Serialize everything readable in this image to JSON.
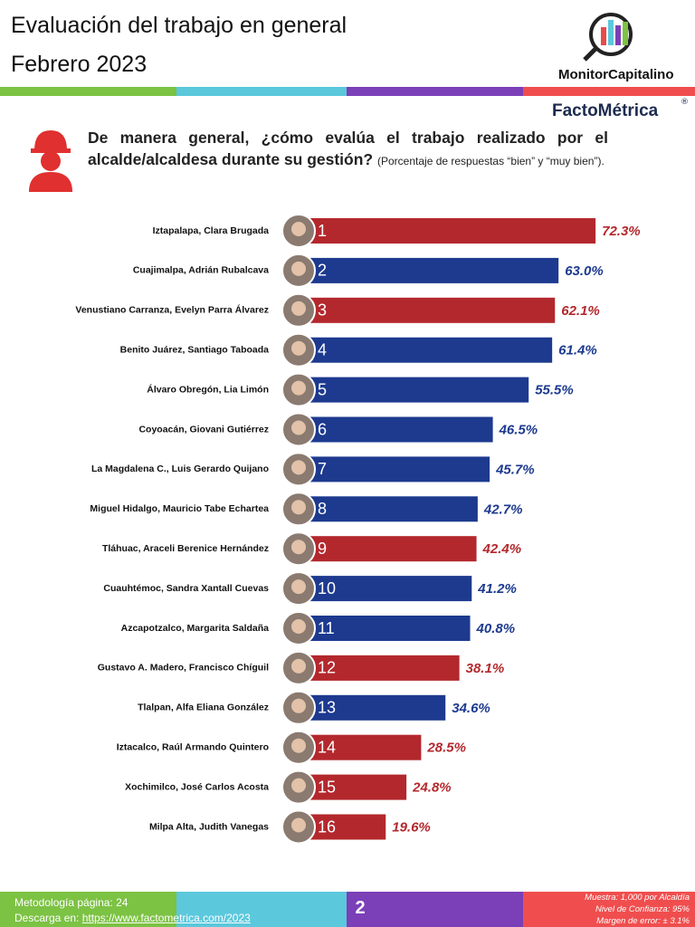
{
  "header": {
    "title_line1": "Evaluación del trabajo en general",
    "title_line2": "Febrero 2023",
    "logo1": "MonitorCapitalino",
    "logo2": "FactoMétrica",
    "logo2_mark": "®"
  },
  "question": {
    "text": "De manera general, ¿cómo evalúa el trabajo realizado por el alcalde/alcaldesa durante su gestión?",
    "note": "(Porcentaje de respuestas “bien” y “muy bien”)."
  },
  "chart_data": {
    "type": "bar",
    "orientation": "horizontal",
    "categories": [
      "Iztapalapa, Clara Brugada",
      "Cuajimalpa, Adrián Rubalcava",
      "Venustiano Carranza, Evelyn Parra Álvarez",
      "Benito Juárez, Santiago Taboada",
      "Álvaro Obregón, Lia Limón",
      "Coyoacán, Giovani Gutiérrez",
      "La Magdalena C., Luis Gerardo Quijano",
      "Miguel Hidalgo, Mauricio Tabe Echartea",
      "Tláhuac, Araceli Berenice Hernández",
      "Cuauhtémoc, Sandra Xantall Cuevas",
      "Azcapotzalco, Margarita Saldaña",
      "Gustavo A. Madero, Francisco Chíguil",
      "Tlalpan, Alfa Eliana González",
      "Iztacalco, Raúl Armando Quintero",
      "Xochimilco, José Carlos Acosta",
      "Milpa Alta, Judith Vanegas"
    ],
    "ranks": [
      "1",
      "2",
      "3",
      "4",
      "5",
      "6",
      "7",
      "8",
      "9",
      "10",
      "11",
      "12",
      "13",
      "14",
      "15",
      "16"
    ],
    "values": [
      72.3,
      63.0,
      62.1,
      61.4,
      55.5,
      46.5,
      45.7,
      42.7,
      42.4,
      41.2,
      40.8,
      38.1,
      34.6,
      28.5,
      24.8,
      19.6
    ],
    "value_labels": [
      "72.3%",
      "63.0%",
      "62.1%",
      "61.4%",
      "55.5%",
      "46.5%",
      "45.7%",
      "42.7%",
      "42.4%",
      "41.2%",
      "40.8%",
      "38.1%",
      "34.6%",
      "28.5%",
      "24.8%",
      "19.6%"
    ],
    "colors": [
      "#b3282d",
      "#1d3a8f",
      "#b3282d",
      "#1d3a8f",
      "#1d3a8f",
      "#1d3a8f",
      "#1d3a8f",
      "#1d3a8f",
      "#b3282d",
      "#1d3a8f",
      "#1d3a8f",
      "#b3282d",
      "#1d3a8f",
      "#b3282d",
      "#b3282d",
      "#b3282d"
    ]
  },
  "footer": {
    "methodology": "Metodología página: 24",
    "download": "Descarga en:",
    "url": "https://www.factometrica.com/2023",
    "page": "2",
    "sample": "Muestra:  1,000 por Alcaldía",
    "confidence": "Nivel de Confianza: 95%",
    "error": "Margen de error: ± 3.1%"
  }
}
